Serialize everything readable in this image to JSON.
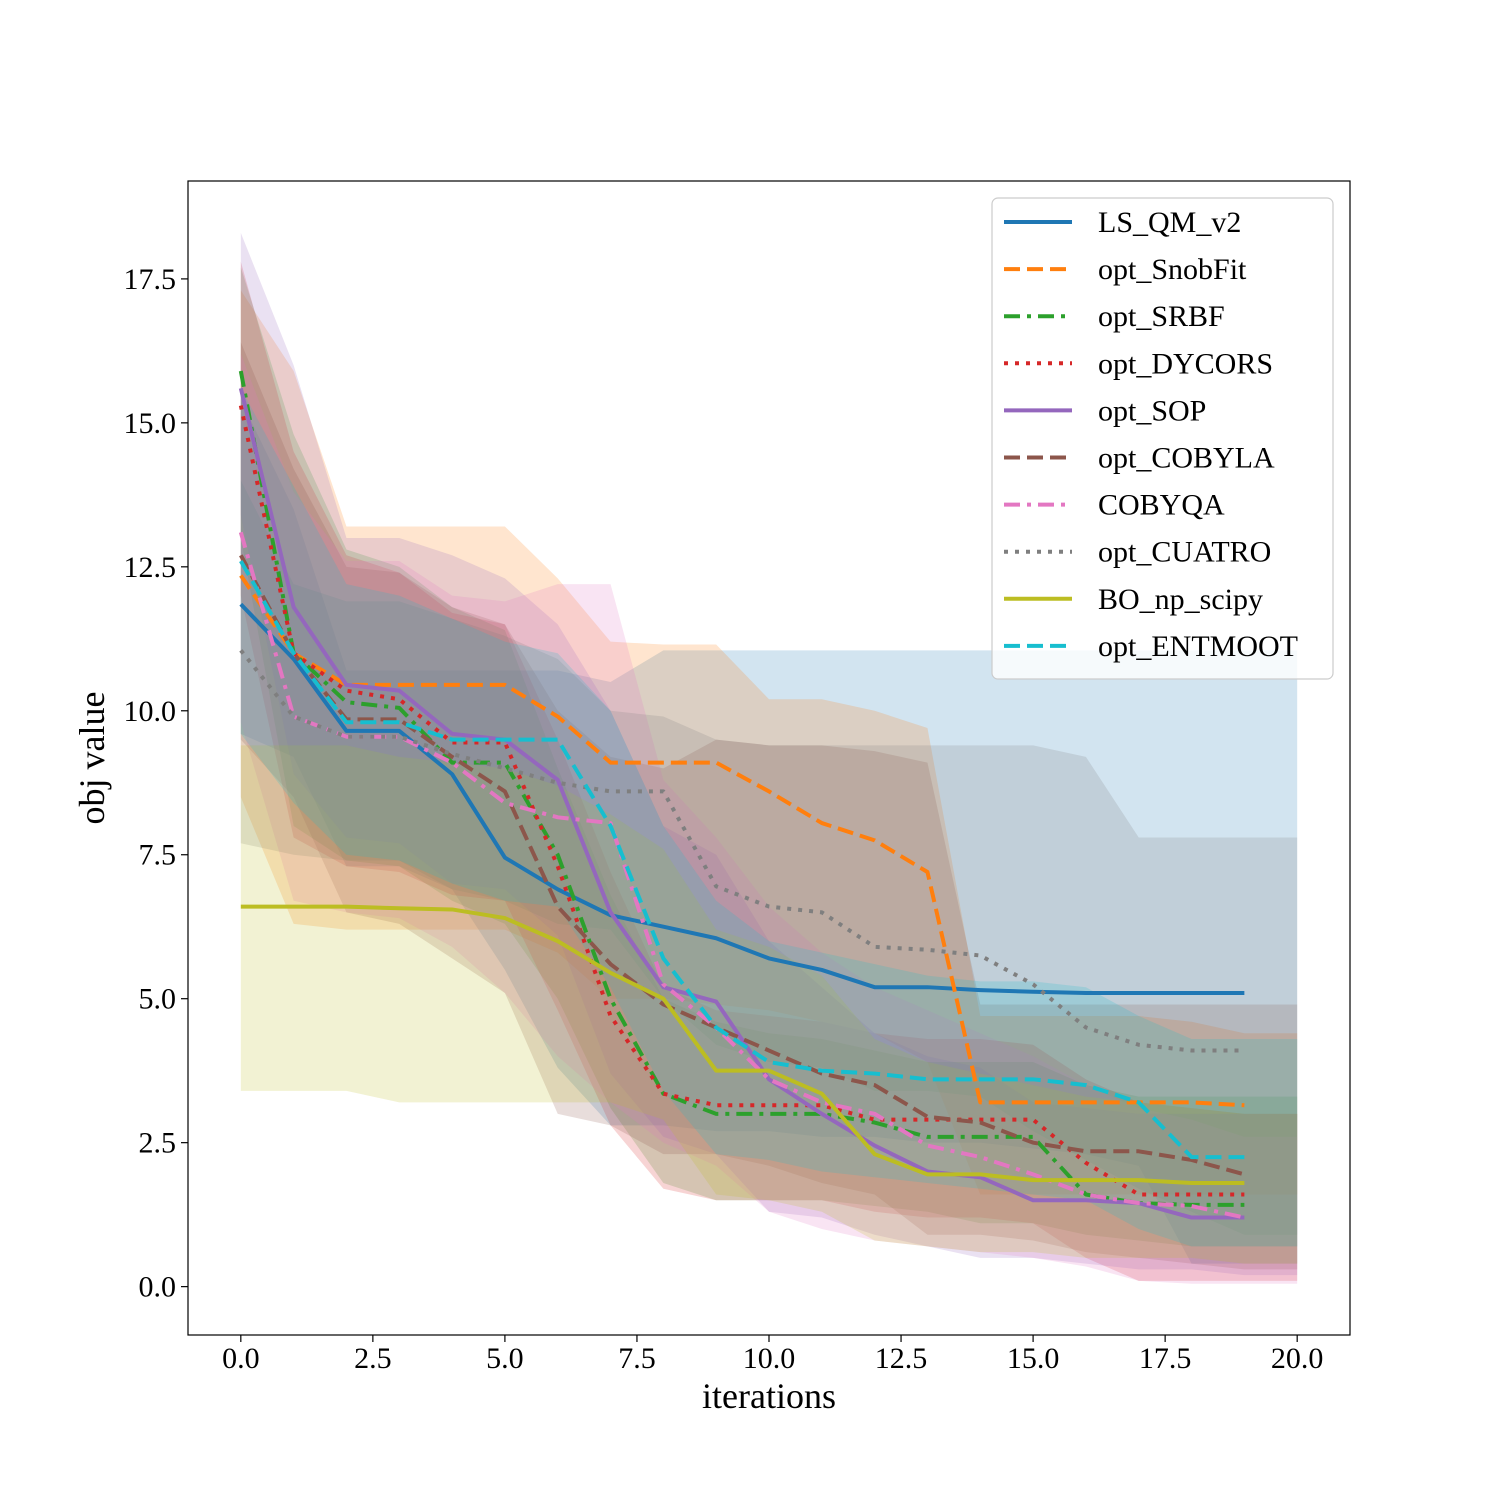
{
  "chart_data": {
    "type": "line",
    "title": "",
    "xlabel": "iterations",
    "ylabel": "obj value",
    "xlim": [
      -1.0,
      21.0
    ],
    "ylim": [
      -0.84,
      19.2
    ],
    "xticks": [
      0.0,
      2.5,
      5.0,
      7.5,
      10.0,
      12.5,
      15.0,
      17.5,
      20.0
    ],
    "xtick_labels": [
      "0.0",
      "2.5",
      "5.0",
      "7.5",
      "10.0",
      "12.5",
      "15.0",
      "17.5",
      "20.0"
    ],
    "yticks": [
      0.0,
      2.5,
      5.0,
      7.5,
      10.0,
      12.5,
      15.0,
      17.5
    ],
    "ytick_labels": [
      "0.0",
      "2.5",
      "5.0",
      "7.5",
      "10.0",
      "12.5",
      "15.0",
      "17.5"
    ],
    "grid": false,
    "legend_position": "top-right",
    "x": [
      0,
      1,
      2,
      3,
      4,
      5,
      6,
      7,
      8,
      9,
      10,
      11,
      12,
      13,
      14,
      15,
      16,
      17,
      18,
      19
    ],
    "series": [
      {
        "name": "LS_QM_v2",
        "color": "#1f77b4",
        "style": "solid",
        "values": [
          11.85,
          10.9,
          9.65,
          9.65,
          8.9,
          7.45,
          6.9,
          6.45,
          6.25,
          6.05,
          5.7,
          5.5,
          5.2,
          5.2,
          5.15,
          5.12,
          5.1,
          5.1,
          5.1,
          5.1
        ],
        "band_upper": [
          15.4,
          13.5,
          10.7,
          10.7,
          10.7,
          10.7,
          10.7,
          10.5,
          11.05,
          11.05,
          11.05,
          11.05,
          11.05,
          11.05,
          11.05,
          11.05,
          11.05,
          11.05,
          11.05,
          11.05
        ],
        "band_lower": [
          9.6,
          9.2,
          7.3,
          7.3,
          6.9,
          5.5,
          3.8,
          2.8,
          2.8,
          2.7,
          2.7,
          2.6,
          2.6,
          2.5,
          2.5,
          2.4,
          2.3,
          2.1,
          0.4,
          0.4
        ]
      },
      {
        "name": "opt_SnobFit",
        "color": "#ff7f0e",
        "style": "dashed",
        "values": [
          12.35,
          11.0,
          10.45,
          10.45,
          10.45,
          10.45,
          9.9,
          9.1,
          9.1,
          9.1,
          8.6,
          8.05,
          7.75,
          7.2,
          3.2,
          3.2,
          3.2,
          3.2,
          3.2,
          3.15
        ],
        "band_upper": [
          17.3,
          15.9,
          13.2,
          13.2,
          13.2,
          13.2,
          12.3,
          11.2,
          11.15,
          11.15,
          10.2,
          10.2,
          10.0,
          9.7,
          4.7,
          4.7,
          4.7,
          4.7,
          4.6,
          4.4
        ],
        "band_lower": [
          8.5,
          6.3,
          6.2,
          6.2,
          6.2,
          6.2,
          5.8,
          5.0,
          5.0,
          4.9,
          4.8,
          4.6,
          4.4,
          3.9,
          1.6,
          1.6,
          1.6,
          1.6,
          1.6,
          1.6
        ]
      },
      {
        "name": "opt_SRBF",
        "color": "#2ca02c",
        "style": "dashdot",
        "values": [
          15.9,
          11.0,
          10.15,
          10.05,
          9.1,
          9.1,
          7.5,
          5.0,
          3.35,
          3.0,
          3.0,
          3.0,
          2.85,
          2.6,
          2.6,
          2.6,
          1.6,
          1.45,
          1.42,
          1.42
        ],
        "band_upper": [
          17.7,
          14.8,
          12.8,
          12.5,
          11.8,
          11.4,
          9.0,
          6.8,
          5.0,
          4.6,
          4.4,
          4.3,
          4.1,
          3.9,
          3.9,
          3.9,
          3.5,
          3.3,
          3.3,
          3.3
        ],
        "band_lower": [
          13.0,
          8.0,
          7.4,
          7.3,
          6.7,
          6.3,
          5.0,
          3.1,
          1.8,
          1.5,
          1.5,
          1.5,
          1.4,
          1.3,
          1.1,
          1.1,
          0.9,
          0.8,
          0.7,
          0.7
        ]
      },
      {
        "name": "opt_DYCORS",
        "color": "#d62728",
        "style": "dotted",
        "values": [
          15.3,
          11.0,
          10.35,
          10.2,
          9.45,
          9.45,
          7.3,
          4.7,
          3.35,
          3.15,
          3.15,
          3.15,
          2.9,
          2.9,
          2.9,
          2.9,
          2.15,
          1.6,
          1.6,
          1.6
        ],
        "band_upper": [
          17.8,
          14.5,
          12.7,
          12.4,
          11.7,
          11.5,
          9.5,
          7.2,
          5.2,
          4.8,
          4.7,
          4.6,
          4.4,
          4.3,
          4.3,
          4.2,
          3.6,
          3.2,
          3.1,
          3.0
        ],
        "band_lower": [
          12.0,
          7.8,
          7.3,
          7.2,
          6.8,
          6.7,
          4.8,
          2.8,
          1.7,
          1.5,
          1.5,
          1.5,
          1.3,
          1.2,
          1.2,
          1.1,
          0.5,
          0.1,
          0.1,
          0.1
        ]
      },
      {
        "name": "opt_SOP",
        "color": "#9467bd",
        "style": "solid",
        "values": [
          15.6,
          11.8,
          10.45,
          10.35,
          9.6,
          9.5,
          8.8,
          6.5,
          5.2,
          4.95,
          3.6,
          3.0,
          2.45,
          2.0,
          1.9,
          1.5,
          1.5,
          1.45,
          1.2,
          1.2
        ],
        "band_upper": [
          18.3,
          16.0,
          13.0,
          13.0,
          12.7,
          12.3,
          11.5,
          10.0,
          8.0,
          7.5,
          6.0,
          5.2,
          4.4,
          4.0,
          3.8,
          3.2,
          3.1,
          3.0,
          3.0,
          3.0
        ],
        "band_lower": [
          13.4,
          8.9,
          7.8,
          7.7,
          7.0,
          6.9,
          6.1,
          3.7,
          2.6,
          2.3,
          1.3,
          1.2,
          0.9,
          0.7,
          0.5,
          0.5,
          0.4,
          0.3,
          0.3,
          0.2
        ]
      },
      {
        "name": "opt_COBYLA",
        "color": "#8c564b",
        "style": "dashed",
        "values": [
          12.7,
          11.0,
          9.85,
          9.85,
          9.2,
          8.6,
          6.6,
          5.6,
          4.9,
          4.5,
          4.1,
          3.7,
          3.5,
          2.95,
          2.85,
          2.5,
          2.35,
          2.35,
          2.2,
          1.95
        ],
        "band_upper": [
          16.4,
          14.2,
          12.5,
          12.4,
          11.8,
          11.5,
          10.0,
          9.2,
          9.0,
          9.5,
          9.4,
          9.4,
          9.3,
          9.1,
          4.9,
          4.9,
          4.9,
          4.9,
          4.9,
          4.9
        ],
        "band_lower": [
          9.5,
          8.5,
          6.5,
          6.3,
          5.7,
          5.1,
          3.0,
          2.8,
          2.3,
          2.3,
          2.1,
          1.8,
          1.6,
          0.9,
          0.9,
          0.8,
          0.6,
          0.5,
          0.4,
          0.3
        ]
      },
      {
        "name": "COBYQA",
        "color": "#e377c2",
        "style": "dashdot",
        "values": [
          13.1,
          9.9,
          9.55,
          9.55,
          9.1,
          8.4,
          8.15,
          8.05,
          5.25,
          4.5,
          3.6,
          3.2,
          3.0,
          2.45,
          2.25,
          1.95,
          1.6,
          1.45,
          1.4,
          1.2
        ],
        "band_upper": [
          16.2,
          13.8,
          12.6,
          12.6,
          12.0,
          11.9,
          12.2,
          12.2,
          8.8,
          7.8,
          6.6,
          5.8,
          5.2,
          4.8,
          4.4,
          4.0,
          3.5,
          3.1,
          2.9,
          2.6
        ],
        "band_lower": [
          9.8,
          6.7,
          6.5,
          6.4,
          5.9,
          5.1,
          4.0,
          3.2,
          2.5,
          2.1,
          1.3,
          1.0,
          0.8,
          0.7,
          0.6,
          0.5,
          0.35,
          0.1,
          0.05,
          0.05
        ]
      },
      {
        "name": "opt_CUATRO",
        "color": "#7f7f7f",
        "style": "dotted",
        "values": [
          11.05,
          9.9,
          9.55,
          9.55,
          9.25,
          9.0,
          8.75,
          8.6,
          8.6,
          6.95,
          6.6,
          6.5,
          5.9,
          5.85,
          5.75,
          5.25,
          4.5,
          4.2,
          4.1,
          4.1
        ],
        "band_upper": [
          14.0,
          12.2,
          11.9,
          11.9,
          11.6,
          11.3,
          10.9,
          10.0,
          9.9,
          9.5,
          9.4,
          9.4,
          9.4,
          9.4,
          9.4,
          9.4,
          9.2,
          7.8,
          7.8,
          7.8
        ],
        "band_lower": [
          7.7,
          7.5,
          7.4,
          7.4,
          6.9,
          6.7,
          6.3,
          6.2,
          5.0,
          4.2,
          3.9,
          3.8,
          3.4,
          3.4,
          3.3,
          2.7,
          2.2,
          1.7,
          1.3,
          0.9
        ]
      },
      {
        "name": "BO_np_scipy",
        "color": "#bcbd22",
        "style": "solid",
        "values": [
          6.6,
          6.6,
          6.6,
          6.57,
          6.55,
          6.4,
          6.0,
          5.45,
          5.0,
          3.75,
          3.75,
          3.35,
          2.3,
          1.95,
          1.95,
          1.85,
          1.85,
          1.85,
          1.8,
          1.8
        ],
        "band_upper": [
          9.4,
          9.4,
          9.4,
          9.2,
          9.1,
          9.0,
          8.7,
          8.2,
          7.6,
          6.2,
          5.9,
          5.4,
          4.3,
          3.9,
          3.7,
          3.5,
          3.3,
          3.2,
          3.1,
          3.0
        ],
        "band_lower": [
          3.4,
          3.4,
          3.4,
          3.2,
          3.2,
          3.2,
          3.2,
          3.2,
          2.9,
          1.6,
          1.5,
          1.3,
          0.8,
          0.7,
          0.6,
          0.6,
          0.5,
          0.5,
          0.5,
          0.4
        ]
      },
      {
        "name": "opt_ENTMOOT",
        "color": "#17becf",
        "style": "dashed",
        "values": [
          12.6,
          11.0,
          9.8,
          9.8,
          9.5,
          9.5,
          9.5,
          8.0,
          5.7,
          4.5,
          3.9,
          3.75,
          3.7,
          3.6,
          3.6,
          3.6,
          3.5,
          3.2,
          2.25,
          2.25
        ],
        "band_upper": [
          15.6,
          13.9,
          12.2,
          12.0,
          11.6,
          11.2,
          11.0,
          10.0,
          8.0,
          6.7,
          6.0,
          5.8,
          5.6,
          5.4,
          5.3,
          5.3,
          5.2,
          4.7,
          4.3,
          4.3
        ],
        "band_lower": [
          9.6,
          8.4,
          7.5,
          7.4,
          7.0,
          6.7,
          6.6,
          5.2,
          3.4,
          2.3,
          2.2,
          2.0,
          1.9,
          1.8,
          1.7,
          1.6,
          1.5,
          1.0,
          0.7,
          0.7
        ]
      }
    ]
  }
}
